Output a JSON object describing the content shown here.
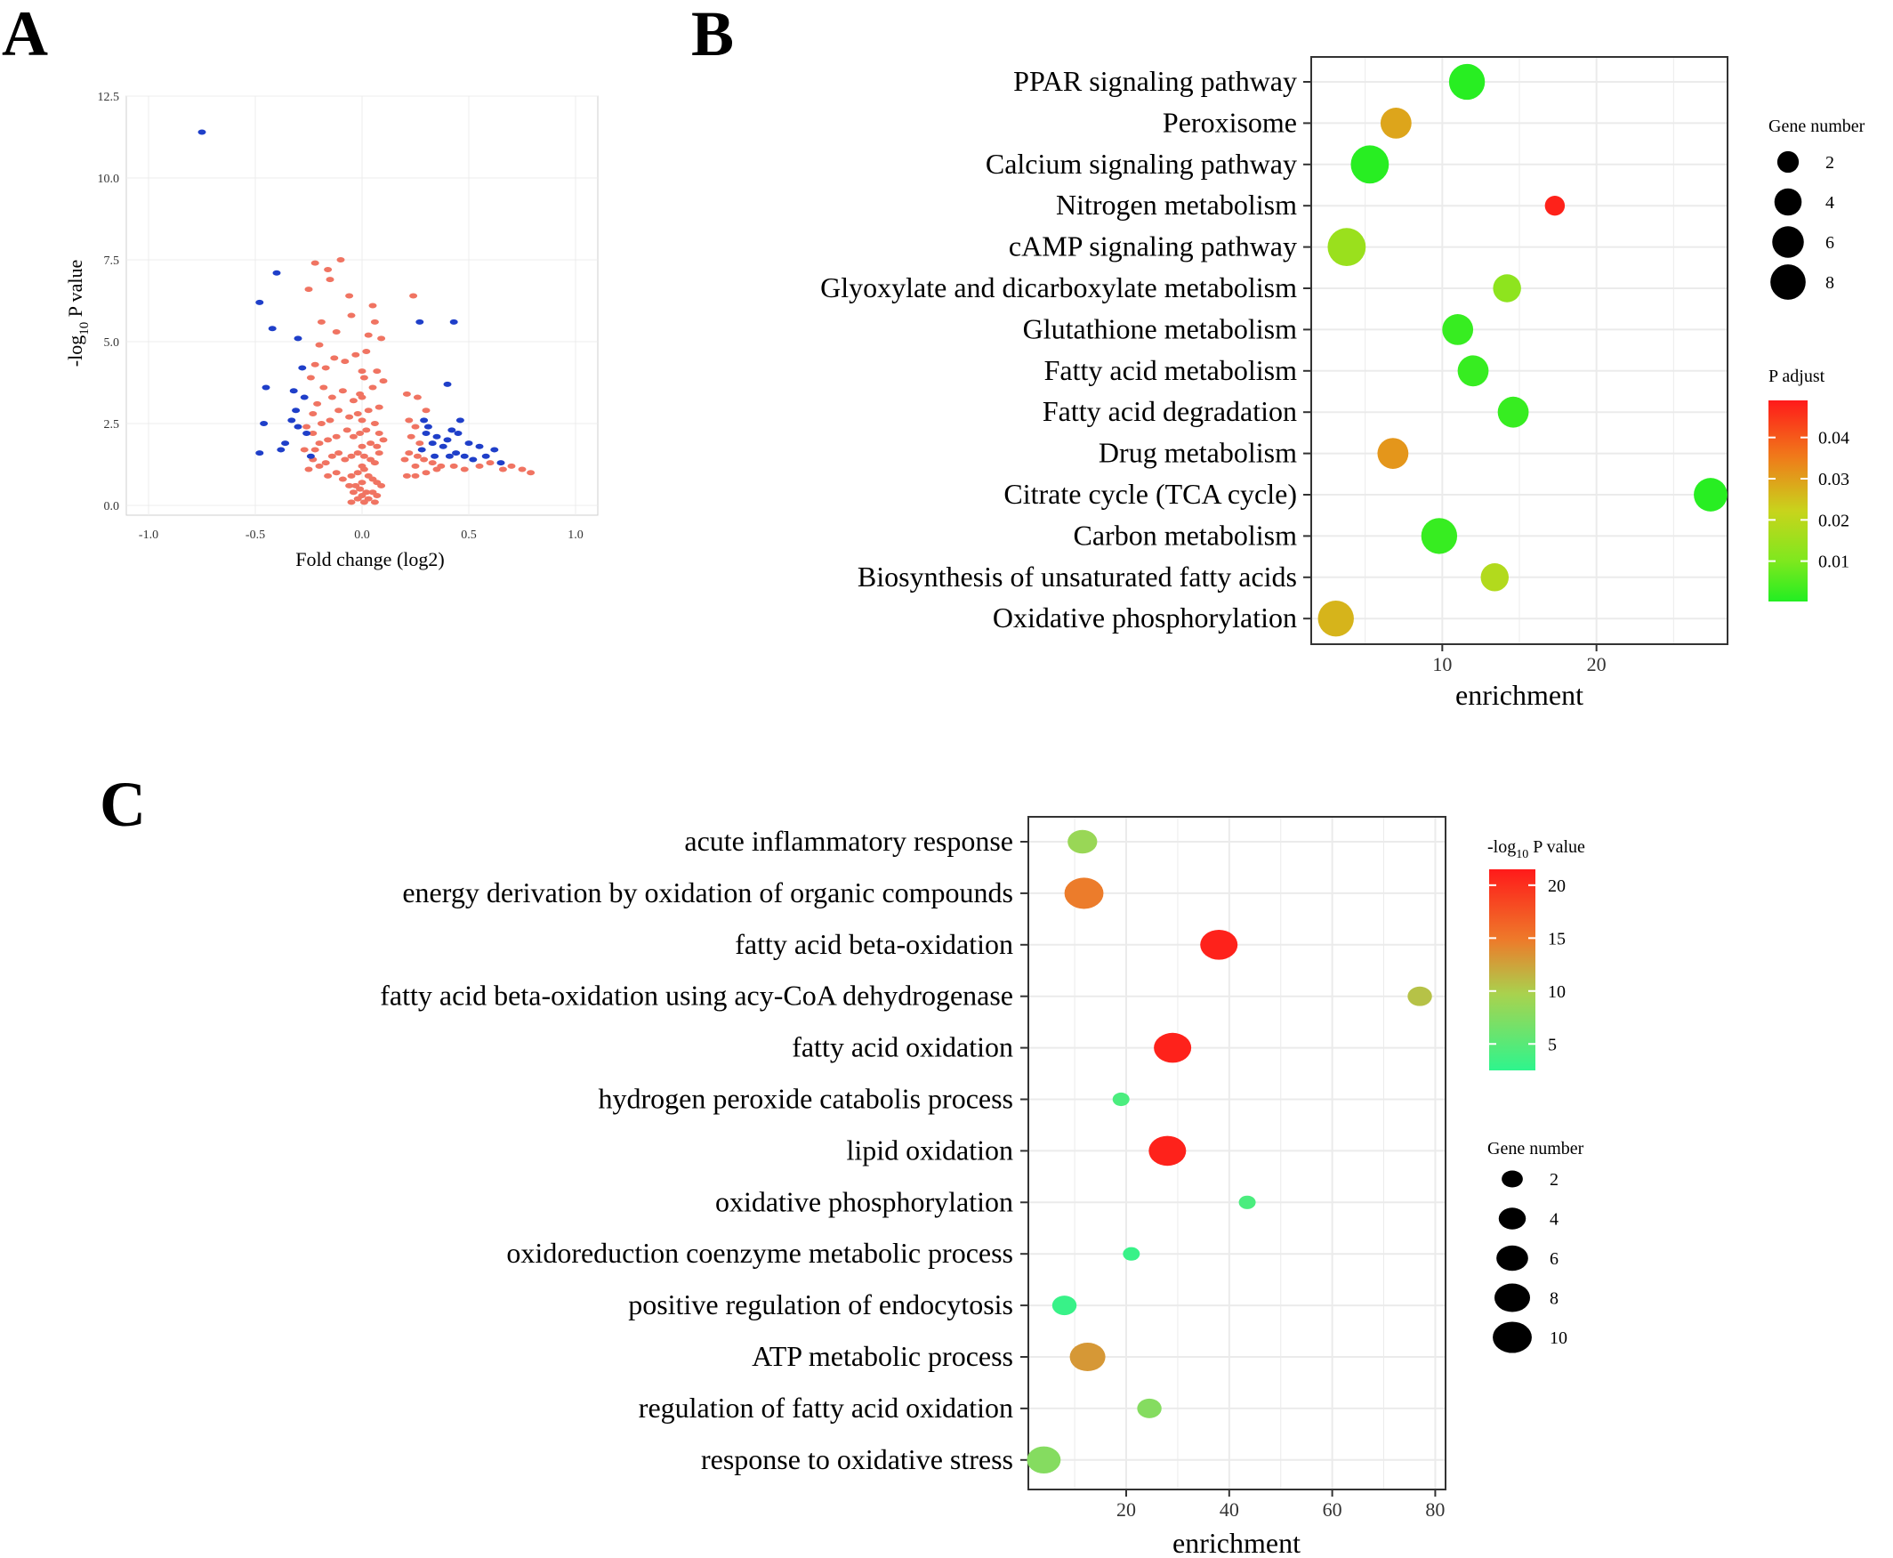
{
  "panels": {
    "a": "A",
    "b": "B",
    "c": "C"
  },
  "chart_data": [
    {
      "panel": "A",
      "type": "scatter",
      "title": "",
      "xlabel": "Fold change (log2)",
      "ylabel": "-log10 P value",
      "ylabel_parts": {
        "pre": "-log",
        "sub": "10",
        "post": " P value"
      },
      "xlim": [
        -1.0,
        1.0
      ],
      "ylim": [
        0,
        12.5
      ],
      "xticks": [
        -1.0,
        -0.5,
        0.0,
        0.5,
        1.0
      ],
      "xtick_labels": [
        "-1.0",
        "-0.5",
        "0.0",
        "0.5",
        "1.0"
      ],
      "yticks": [
        0.0,
        2.5,
        5.0,
        7.5,
        10.0,
        12.5
      ],
      "ytick_labels": [
        "0.0",
        "2.5",
        "5.0",
        "7.5",
        "10.0",
        "12.5"
      ],
      "grid": true,
      "colors": {
        "significant": "#1f3fc9",
        "nonsignificant": "#f07462"
      },
      "series": [
        {
          "color": "#1f3fc9",
          "points": [
            [
              -0.75,
              11.4
            ],
            [
              -0.4,
              7.1
            ],
            [
              -0.48,
              6.2
            ],
            [
              -0.42,
              5.4
            ],
            [
              -0.3,
              5.1
            ],
            [
              -0.28,
              4.2
            ],
            [
              -0.45,
              3.6
            ],
            [
              -0.32,
              3.5
            ],
            [
              -0.27,
              3.3
            ],
            [
              -0.31,
              2.9
            ],
            [
              -0.33,
              2.6
            ],
            [
              -0.3,
              2.4
            ],
            [
              -0.46,
              2.5
            ],
            [
              -0.26,
              2.2
            ],
            [
              -0.36,
              1.9
            ],
            [
              -0.48,
              1.6
            ],
            [
              -0.38,
              1.7
            ],
            [
              -0.24,
              1.5
            ],
            [
              0.27,
              5.6
            ],
            [
              0.43,
              5.6
            ],
            [
              0.4,
              3.7
            ],
            [
              0.29,
              2.6
            ],
            [
              0.31,
              2.4
            ],
            [
              0.3,
              2.2
            ],
            [
              0.35,
              2.1
            ],
            [
              0.4,
              2.0
            ],
            [
              0.42,
              2.3
            ],
            [
              0.45,
              2.2
            ],
            [
              0.33,
              1.9
            ],
            [
              0.38,
              1.8
            ],
            [
              0.28,
              1.7
            ],
            [
              0.5,
              1.9
            ],
            [
              0.55,
              1.8
            ],
            [
              0.48,
              1.5
            ],
            [
              0.52,
              1.4
            ],
            [
              0.44,
              1.6
            ],
            [
              0.41,
              1.5
            ],
            [
              0.62,
              1.7
            ],
            [
              0.58,
              1.5
            ],
            [
              0.46,
              2.6
            ],
            [
              0.34,
              1.5
            ],
            [
              0.65,
              1.3
            ]
          ]
        },
        {
          "color": "#f07462",
          "points": [
            [
              -0.22,
              7.4
            ],
            [
              -0.1,
              7.5
            ],
            [
              -0.16,
              7.2
            ],
            [
              -0.25,
              6.6
            ],
            [
              -0.15,
              6.9
            ],
            [
              -0.06,
              6.4
            ],
            [
              0.05,
              6.1
            ],
            [
              0.24,
              6.4
            ],
            [
              0.06,
              5.6
            ],
            [
              -0.05,
              5.8
            ],
            [
              -0.12,
              5.3
            ],
            [
              -0.19,
              5.6
            ],
            [
              -0.2,
              4.9
            ],
            [
              0.03,
              5.2
            ],
            [
              0.09,
              5.1
            ],
            [
              0.02,
              4.7
            ],
            [
              -0.03,
              4.6
            ],
            [
              -0.08,
              4.4
            ],
            [
              -0.13,
              4.5
            ],
            [
              -0.17,
              4.2
            ],
            [
              -0.22,
              4.3
            ],
            [
              -0.24,
              3.9
            ],
            [
              0.07,
              4.1
            ],
            [
              0.1,
              3.8
            ],
            [
              0.05,
              3.6
            ],
            [
              0.01,
              3.9
            ],
            [
              -0.01,
              3.4
            ],
            [
              -0.04,
              3.2
            ],
            [
              -0.09,
              3.5
            ],
            [
              -0.14,
              3.3
            ],
            [
              -0.18,
              3.6
            ],
            [
              -0.21,
              3.1
            ],
            [
              -0.23,
              2.8
            ],
            [
              0.21,
              3.4
            ],
            [
              0.26,
              3.3
            ],
            [
              0.3,
              2.9
            ],
            [
              0.22,
              2.6
            ],
            [
              0.25,
              2.4
            ],
            [
              0.08,
              3.0
            ],
            [
              0.03,
              2.9
            ],
            [
              -0.02,
              2.8
            ],
            [
              -0.06,
              2.7
            ],
            [
              -0.11,
              2.9
            ],
            [
              -0.15,
              2.6
            ],
            [
              -0.19,
              2.5
            ],
            [
              -0.23,
              2.2
            ],
            [
              -0.26,
              2.4
            ],
            [
              0.06,
              2.5
            ],
            [
              0.02,
              2.3
            ],
            [
              -0.01,
              2.2
            ],
            [
              -0.04,
              2.1
            ],
            [
              -0.07,
              2.3
            ],
            [
              -0.12,
              2.1
            ],
            [
              -0.16,
              2.0
            ],
            [
              -0.2,
              1.9
            ],
            [
              -0.22,
              1.7
            ],
            [
              0.04,
              1.9
            ],
            [
              0.07,
              1.8
            ],
            [
              0.1,
              2.0
            ],
            [
              0.23,
              2.1
            ],
            [
              0.27,
              1.9
            ],
            [
              0.22,
              1.6
            ],
            [
              0.26,
              1.5
            ],
            [
              0.29,
              1.4
            ],
            [
              0.33,
              1.3
            ],
            [
              0.37,
              1.2
            ],
            [
              0.43,
              1.2
            ],
            [
              0.48,
              1.1
            ],
            [
              0.55,
              1.2
            ],
            [
              0.6,
              1.3
            ],
            [
              0.66,
              1.1
            ],
            [
              0.7,
              1.2
            ],
            [
              0.75,
              1.1
            ],
            [
              0.79,
              1.0
            ],
            [
              0.2,
              1.4
            ],
            [
              0.25,
              1.2
            ],
            [
              0.3,
              1.0
            ],
            [
              0.35,
              1.1
            ],
            [
              0.25,
              0.9
            ],
            [
              0.21,
              0.9
            ],
            [
              -0.02,
              1.6
            ],
            [
              0.01,
              1.5
            ],
            [
              0.04,
              1.4
            ],
            [
              0.06,
              1.3
            ],
            [
              -0.05,
              1.5
            ],
            [
              -0.08,
              1.4
            ],
            [
              -0.11,
              1.6
            ],
            [
              -0.14,
              1.5
            ],
            [
              -0.17,
              1.3
            ],
            [
              -0.2,
              1.2
            ],
            [
              -0.23,
              1.4
            ],
            [
              -0.16,
              0.9
            ],
            [
              -0.12,
              1.0
            ],
            [
              -0.09,
              0.8
            ],
            [
              -0.05,
              0.9
            ],
            [
              -0.02,
              1.0
            ],
            [
              0.01,
              1.1
            ],
            [
              0.03,
              0.9
            ],
            [
              0.05,
              0.8
            ],
            [
              0.07,
              0.7
            ],
            [
              -0.03,
              0.6
            ],
            [
              -0.01,
              0.5
            ],
            [
              0.02,
              0.4
            ],
            [
              0.0,
              0.3
            ],
            [
              -0.02,
              0.2
            ],
            [
              0.01,
              0.1
            ],
            [
              0.03,
              0.2
            ],
            [
              0.05,
              0.4
            ],
            [
              0.07,
              0.3
            ],
            [
              -0.04,
              0.4
            ],
            [
              -0.06,
              0.6
            ],
            [
              0.09,
              0.6
            ],
            [
              -0.25,
              1.1
            ],
            [
              -0.27,
              1.7
            ],
            [
              0.0,
              0.7
            ],
            [
              0.0,
              1.2
            ],
            [
              0.0,
              1.8
            ],
            [
              0.0,
              2.6
            ],
            [
              0.0,
              3.3
            ],
            [
              0.0,
              4.1
            ],
            [
              0.06,
              0.1
            ],
            [
              -0.05,
              0.1
            ],
            [
              0.08,
              1.6
            ],
            [
              0.08,
              2.2
            ]
          ]
        }
      ]
    },
    {
      "panel": "B",
      "type": "scatter",
      "title": "",
      "xlabel": "enrichment",
      "ylabel": "",
      "xlim": [
        1.5,
        28.5
      ],
      "xticks": [
        10,
        20
      ],
      "xtick_labels": [
        "10",
        "20"
      ],
      "grid": true,
      "categories": [
        "PPAR signaling pathway",
        "Peroxisome",
        "Calcium signaling pathway",
        "Nitrogen metabolism",
        "cAMP signaling pathway",
        "Glyoxylate and dicarboxylate metabolism",
        "Glutathione metabolism",
        "Fatty acid metabolism",
        "Fatty acid degradation",
        "Drug metabolism",
        "Citrate cycle (TCA cycle)",
        "Carbon metabolism",
        "Biosynthesis of unsaturated fatty acids",
        "Oxidative phosphorylation"
      ],
      "enrichment": [
        11.6,
        7.0,
        5.3,
        17.3,
        3.8,
        14.2,
        11.0,
        12.0,
        14.6,
        6.8,
        27.4,
        9.8,
        13.4,
        3.1
      ],
      "gene_number": [
        6,
        4,
        7,
        1,
        7,
        3,
        4,
        4,
        4,
        4,
        5,
        6,
        3,
        6
      ],
      "p_adjust": [
        0.001,
        0.031,
        0.001,
        0.048,
        0.017,
        0.015,
        0.003,
        0.003,
        0.003,
        0.033,
        0.001,
        0.003,
        0.021,
        0.029
      ],
      "size_legend": {
        "title": "Gene number",
        "values": [
          2,
          4,
          6,
          8
        ]
      },
      "color_legend": {
        "title": "P adjust",
        "ticks": [
          0.04,
          0.03,
          0.02,
          0.01
        ],
        "tick_labels": [
          "0.04",
          "0.03",
          "0.02",
          "0.01"
        ],
        "range": [
          0.0002,
          0.049
        ],
        "colors": [
          "#ff1a1a",
          "#22ee22"
        ]
      }
    },
    {
      "panel": "C",
      "type": "scatter",
      "title": "",
      "xlabel": "enrichment",
      "ylabel": "",
      "xlim": [
        1,
        82
      ],
      "xticks": [
        20,
        40,
        60,
        80
      ],
      "xtick_labels": [
        "20",
        "40",
        "60",
        "80"
      ],
      "grid": true,
      "categories": [
        "acute inflammatory response",
        "energy derivation by oxidation of organic compounds",
        "fatty acid beta-oxidation",
        "fatty acid beta-oxidation using acy-CoA dehydrogenase",
        "fatty acid oxidation",
        "hydrogen peroxide catabolis process",
        "lipid oxidation",
        "oxidative phosphorylation",
        "oxidoreduction coenzyme metabolic process",
        "positive regulation of endocytosis",
        "ATP metabolic process",
        "regulation of fatty acid oxidation",
        "response to oxidative stress"
      ],
      "enrichment": [
        11.5,
        11.8,
        38,
        77,
        29,
        19,
        28,
        43.5,
        21,
        8,
        12.5,
        24.5,
        4
      ],
      "gene_number": [
        5,
        10,
        9,
        3,
        9,
        1,
        9,
        1,
        1,
        3,
        8,
        3,
        7
      ],
      "neglog10_p": [
        8,
        15,
        21,
        10,
        21,
        4,
        21,
        4,
        3,
        3,
        13,
        7,
        7
      ],
      "size_legend": {
        "title": "Gene number",
        "values": [
          2,
          4,
          6,
          8,
          10
        ]
      },
      "color_legend": {
        "title_parts": {
          "pre": "-log",
          "sub": "10",
          "post": " P value"
        },
        "ticks": [
          20,
          15,
          10,
          5
        ],
        "tick_labels": [
          "20",
          "15",
          "10",
          "5"
        ],
        "range": [
          2.5,
          21.5
        ],
        "colors": [
          "#ff1a1a",
          "#ee7a2a",
          "#a9d24e",
          "#2ef58d"
        ]
      }
    }
  ]
}
